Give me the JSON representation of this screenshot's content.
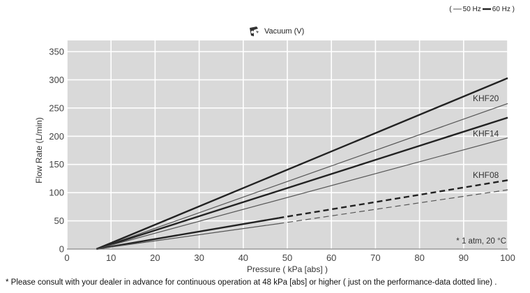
{
  "legend": {
    "open": "(",
    "s50": "50 Hz",
    "s60": "60 Hz )",
    "color50": "#555555",
    "color60": "#222222"
  },
  "title": {
    "text": "Vacuum (V)",
    "icon": "vacuum-icon"
  },
  "note": "* 1 atm, 20 °C",
  "footnote": "* Please consult with your dealer in advance for continuous operation at 48 kPa [abs] or higher ( just on the performance-data dotted line) .",
  "chart_data": {
    "type": "line",
    "xlabel": "Pressure ( kPa [abs] )",
    "ylabel": "Flow Rate (L/min)",
    "xlim": [
      0,
      100
    ],
    "ylim": [
      0,
      350
    ],
    "xticks": [
      0,
      10,
      20,
      30,
      40,
      50,
      60,
      70,
      80,
      90,
      100
    ],
    "yticks": [
      0,
      50,
      100,
      150,
      200,
      250,
      300,
      350
    ],
    "grid": true,
    "series": [
      {
        "label": "KHF20",
        "freq": "60 Hz",
        "points": [
          [
            6.7,
            0
          ],
          [
            100,
            303
          ]
        ],
        "dashed_from": null
      },
      {
        "label": "KHF20",
        "freq": "50 Hz",
        "points": [
          [
            6.7,
            0
          ],
          [
            100,
            258
          ]
        ],
        "dashed_from": null
      },
      {
        "label": "KHF14",
        "freq": "60 Hz",
        "points": [
          [
            6.7,
            0
          ],
          [
            100,
            233
          ]
        ],
        "dashed_from": null
      },
      {
        "label": "KHF14",
        "freq": "50 Hz",
        "points": [
          [
            6.7,
            0
          ],
          [
            100,
            197
          ]
        ],
        "dashed_from": null
      },
      {
        "label": "KHF08",
        "freq": "60 Hz",
        "points": [
          [
            6.7,
            0
          ],
          [
            48,
            55
          ],
          [
            100,
            122
          ]
        ],
        "dashed_from": 48
      },
      {
        "label": "KHF08",
        "freq": "50 Hz",
        "points": [
          [
            6.7,
            0
          ],
          [
            48,
            45
          ],
          [
            100,
            105
          ]
        ],
        "dashed_from": 48
      }
    ],
    "annotations": [
      {
        "text": "KHF20",
        "x": 98,
        "y": 262
      },
      {
        "text": "KHF14",
        "x": 98,
        "y": 200
      },
      {
        "text": "KHF08",
        "x": 98,
        "y": 126
      }
    ]
  }
}
